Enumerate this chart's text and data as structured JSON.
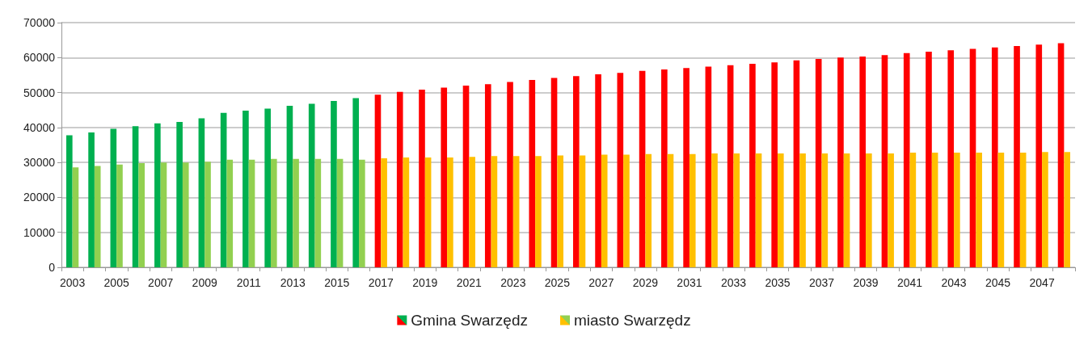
{
  "chart_data": {
    "type": "bar",
    "categories": [
      "2003",
      null,
      "2005",
      null,
      "2007",
      null,
      "2009",
      null,
      "2011",
      null,
      "2013",
      null,
      "2015",
      null,
      "2017",
      null,
      "2019",
      null,
      "2021",
      null,
      "2023",
      null,
      "2025",
      null,
      "2027",
      null,
      "2029",
      null,
      "2031",
      null,
      "2033",
      null,
      "2035",
      null,
      "2037",
      null,
      "2039",
      null,
      "2041",
      null,
      "2043",
      null,
      "2045",
      null,
      "2047",
      null
    ],
    "series": [
      {
        "name": "Gmina Swarzędz",
        "colors": [
          "#00b050",
          "#00b050",
          "#00b050",
          "#00b050",
          "#00b050",
          "#00b050",
          "#00b050",
          "#00b050",
          "#00b050",
          "#00b050",
          "#00b050",
          "#00b050",
          "#00b050",
          "#00b050",
          "#ff0000",
          "#ff0000",
          "#ff0000",
          "#ff0000",
          "#ff0000",
          "#ff0000",
          "#ff0000",
          "#ff0000",
          "#ff0000",
          "#ff0000",
          "#ff0000",
          "#ff0000",
          "#ff0000",
          "#ff0000",
          "#ff0000",
          "#ff0000",
          "#ff0000",
          "#ff0000",
          "#ff0000",
          "#ff0000",
          "#ff0000",
          "#ff0000",
          "#ff0000",
          "#ff0000",
          "#ff0000",
          "#ff0000",
          "#ff0000",
          "#ff0000",
          "#ff0000",
          "#ff0000",
          "#ff0000",
          "#ff0000"
        ],
        "values": [
          37800,
          38600,
          39600,
          40400,
          41200,
          41600,
          42600,
          44200,
          44800,
          45400,
          46200,
          46800,
          47600,
          48400,
          49400,
          50200,
          50800,
          51400,
          52000,
          52400,
          53000,
          53600,
          54200,
          54700,
          55200,
          55600,
          56200,
          56600,
          57000,
          57400,
          57800,
          58200,
          58600,
          59200,
          59600,
          60000,
          60300,
          60700,
          61300,
          61700,
          62100,
          62500,
          62900,
          63300,
          63700,
          64100
        ]
      },
      {
        "name": "miasto Swarzędz",
        "colors": [
          "#92d050",
          "#92d050",
          "#92d050",
          "#92d050",
          "#92d050",
          "#92d050",
          "#92d050",
          "#92d050",
          "#92d050",
          "#92d050",
          "#92d050",
          "#92d050",
          "#92d050",
          "#92d050",
          "#ffc000",
          "#ffc000",
          "#ffc000",
          "#ffc000",
          "#ffc000",
          "#ffc000",
          "#ffc000",
          "#ffc000",
          "#ffc000",
          "#ffc000",
          "#ffc000",
          "#ffc000",
          "#ffc000",
          "#ffc000",
          "#ffc000",
          "#ffc000",
          "#ffc000",
          "#ffc000",
          "#ffc000",
          "#ffc000",
          "#ffc000",
          "#ffc000",
          "#ffc000",
          "#ffc000",
          "#ffc000",
          "#ffc000",
          "#ffc000",
          "#ffc000",
          "#ffc000",
          "#ffc000",
          "#ffc000",
          "#ffc000"
        ],
        "values": [
          28600,
          29000,
          29400,
          29800,
          30000,
          30000,
          30200,
          30800,
          30800,
          31000,
          31000,
          31000,
          31000,
          30800,
          31200,
          31400,
          31400,
          31400,
          31600,
          31800,
          31800,
          31800,
          32000,
          32000,
          32200,
          32200,
          32400,
          32400,
          32400,
          32600,
          32600,
          32600,
          32600,
          32600,
          32600,
          32600,
          32600,
          32600,
          32800,
          32800,
          32800,
          32800,
          32800,
          32800,
          33000,
          33000
        ]
      }
    ],
    "ylim": [
      0,
      70000
    ],
    "yticks": [
      0,
      10000,
      20000,
      30000,
      40000,
      50000,
      60000,
      70000
    ],
    "grid": "y",
    "legend": "bottom"
  }
}
